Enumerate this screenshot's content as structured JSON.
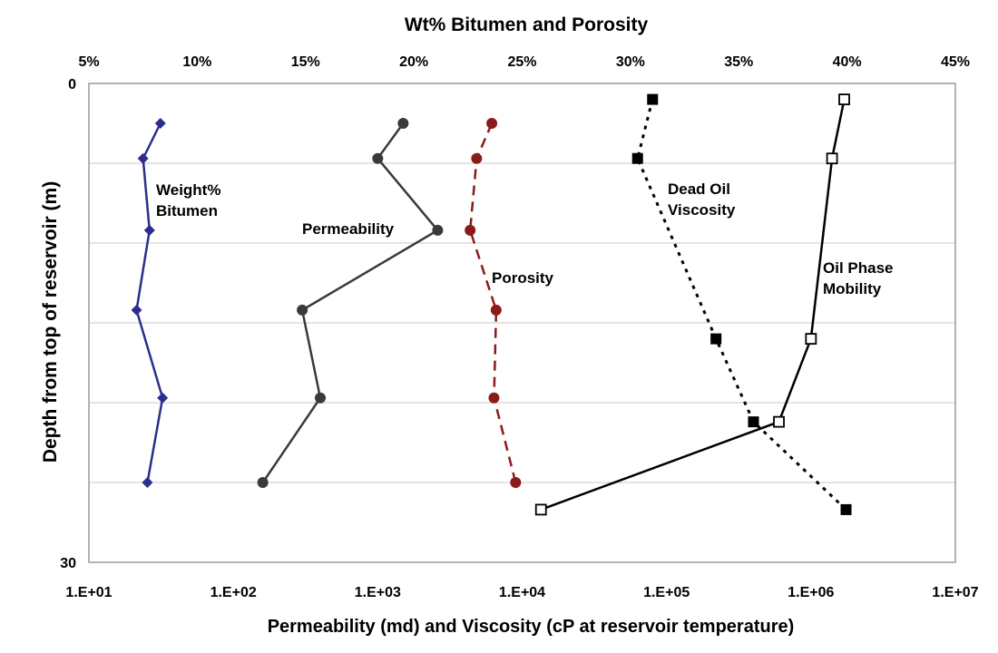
{
  "chart_data": {
    "type": "line",
    "title": "Wt% Bitumen and Porosity",
    "xlabel": "Permeability (md) and Viscosity (cP at reservoir temperature)",
    "ylabel": "Depth from top of reservoir (m)",
    "top_axis": {
      "range": [
        5,
        45
      ],
      "ticks": [
        5,
        10,
        15,
        20,
        25,
        30,
        35,
        40,
        45
      ],
      "tick_labels": [
        "5%",
        "10%",
        "15%",
        "20%",
        "25%",
        "30%",
        "35%",
        "40%",
        "45%"
      ]
    },
    "bottom_axis": {
      "scale": "log",
      "range": [
        10,
        10000000
      ],
      "ticks": [
        10,
        100,
        1000,
        10000,
        100000,
        1000000,
        10000000
      ],
      "tick_labels": [
        "1.E+01",
        "1.E+02",
        "1.E+03",
        "1.E+04",
        "1.E+05",
        "1.E+06",
        "1.E+07"
      ]
    },
    "y_axis": {
      "range": [
        0,
        30
      ],
      "inverted": true,
      "tick_labels": [
        {
          "value": 0,
          "label": "0"
        },
        {
          "value": 30,
          "label": "30"
        }
      ],
      "gridlines": [
        5,
        10,
        15,
        20,
        25
      ]
    },
    "series": [
      {
        "name": "Weight% Bitumen",
        "label_lines": [
          "Weight%",
          "Bitumen"
        ],
        "axis": "top",
        "color": "#2b2e8c",
        "line": "solid",
        "marker": "diamond",
        "x": [
          8.3,
          7.5,
          7.8,
          7.2,
          8.4,
          7.7
        ],
        "y": [
          2.5,
          4.7,
          9.2,
          14.2,
          19.7,
          25.0
        ]
      },
      {
        "name": "Permeability",
        "label_lines": [
          "Permeability"
        ],
        "axis": "bottom",
        "color": "#3a3a3a",
        "line": "solid",
        "marker": "circle",
        "x": [
          1500,
          1000,
          2600,
          300,
          400,
          160
        ],
        "y": [
          2.5,
          4.7,
          9.2,
          14.2,
          19.7,
          25.0
        ]
      },
      {
        "name": "Porosity",
        "label_lines": [
          "Porosity"
        ],
        "axis": "top",
        "color": "#8b1a1a",
        "line": "dashed",
        "marker": "circle",
        "x": [
          23.6,
          22.9,
          22.6,
          23.8,
          23.7,
          24.7
        ],
        "y": [
          2.5,
          4.7,
          9.2,
          14.2,
          19.7,
          25.0
        ]
      },
      {
        "name": "Dead Oil Viscosity",
        "label_lines": [
          "Dead Oil",
          "Viscosity"
        ],
        "axis": "bottom",
        "color": "#000000",
        "line": "dotted",
        "marker": "filled-square",
        "x": [
          80000,
          63000,
          220000,
          400000,
          1750000
        ],
        "y": [
          1.0,
          4.7,
          16.0,
          21.2,
          26.7
        ]
      },
      {
        "name": "Oil Phase Mobility",
        "label_lines": [
          "Oil Phase",
          "Mobility"
        ],
        "axis": "bottom",
        "color": "#000000",
        "line": "solid",
        "marker": "open-square",
        "x": [
          1700000,
          1400000,
          1000000,
          600000,
          13500
        ],
        "y": [
          1.0,
          4.7,
          16.0,
          21.2,
          26.7
        ]
      }
    ]
  }
}
